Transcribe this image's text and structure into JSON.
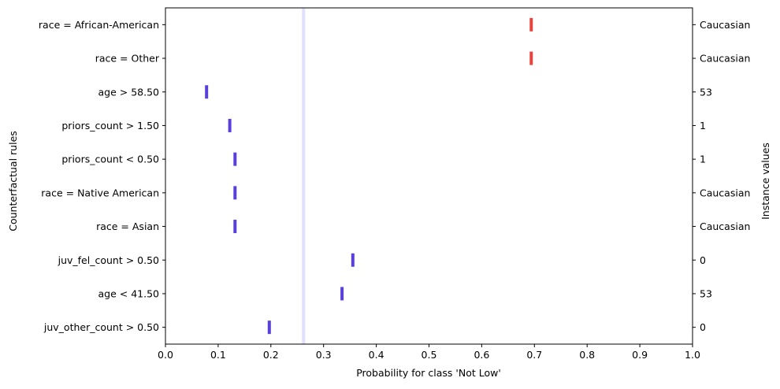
{
  "chart_data": {
    "type": "scatter",
    "xlabel": "Probability for class 'Not Low'",
    "ylabel": "Counterfactual rules",
    "y2label": "Instance values",
    "xlim": [
      0.0,
      1.0
    ],
    "xticks": [
      "0.0",
      "0.1",
      "0.2",
      "0.3",
      "0.4",
      "0.5",
      "0.6",
      "0.7",
      "0.8",
      "0.9",
      "1.0"
    ],
    "grid": false,
    "baseline": {
      "value": 0.262,
      "color": "#e2e0ff"
    },
    "rules": [
      {
        "label": "race = African-American",
        "instance_value": "Caucasian",
        "low": 0.693,
        "high": 0.695,
        "color": "#e5433c"
      },
      {
        "label": "race = Other",
        "instance_value": "Caucasian",
        "low": 0.693,
        "high": 0.695,
        "color": "#e5433c"
      },
      {
        "label": "age > 58.50",
        "instance_value": "53",
        "low": 0.077,
        "high": 0.079,
        "color": "#5b3fd9"
      },
      {
        "label": "priors_count > 1.50",
        "instance_value": "1",
        "low": 0.121,
        "high": 0.123,
        "color": "#5b3fd9"
      },
      {
        "label": "priors_count < 0.50",
        "instance_value": "1",
        "low": 0.131,
        "high": 0.133,
        "color": "#5b3fd9"
      },
      {
        "label": "race = Native American",
        "instance_value": "Caucasian",
        "low": 0.131,
        "high": 0.133,
        "color": "#5b3fd9"
      },
      {
        "label": "race = Asian",
        "instance_value": "Caucasian",
        "low": 0.131,
        "high": 0.133,
        "color": "#5b3fd9"
      },
      {
        "label": "juv_fel_count > 0.50",
        "instance_value": "0",
        "low": 0.353,
        "high": 0.358,
        "color": "#5b3fd9"
      },
      {
        "label": "age < 41.50",
        "instance_value": "53",
        "low": 0.334,
        "high": 0.336,
        "color": "#5b3fd9"
      },
      {
        "label": "juv_other_count > 0.50",
        "instance_value": "0",
        "low": 0.196,
        "high": 0.198,
        "color": "#5b3fd9"
      }
    ]
  }
}
